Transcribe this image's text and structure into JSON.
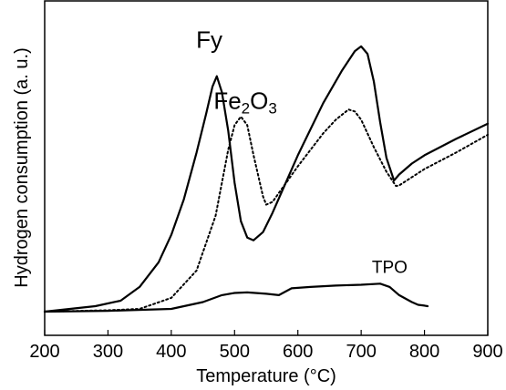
{
  "chart_data": {
    "type": "line",
    "title": "",
    "xlabel": "Temperature (°C)",
    "ylabel": "Hydrogen consumption (a. u.)",
    "xlim": [
      200,
      900
    ],
    "ylim": [
      0,
      1
    ],
    "xticks": [
      200,
      300,
      400,
      500,
      600,
      700,
      800,
      900
    ],
    "yticks_shown": false,
    "grid": false,
    "legend": "none",
    "annotations": [
      {
        "id": "fy",
        "text": "Fy",
        "x": 460,
        "y": 0.962
      },
      {
        "id": "fe2o3",
        "text": "Fe2O3",
        "text_main": "Fe",
        "sub1": "2",
        "mid": "O",
        "sub2": "3",
        "x": 517,
        "y": 0.739
      },
      {
        "id": "tpo",
        "text": "TPO",
        "x": 745,
        "y": 0.142
      }
    ],
    "series": [
      {
        "id": "fy",
        "style": "solid",
        "color": "#000000",
        "x": [
          200,
          280,
          320,
          350,
          380,
          400,
          420,
          440,
          455,
          465,
          472,
          480,
          490,
          500,
          510,
          520,
          530,
          545,
          560,
          600,
          640,
          670,
          690,
          700,
          710,
          720,
          730,
          740,
          752,
          760,
          780,
          800,
          850,
          900
        ],
        "y": [
          0.0,
          0.02,
          0.04,
          0.09,
          0.18,
          0.28,
          0.41,
          0.58,
          0.72,
          0.82,
          0.858,
          0.8,
          0.66,
          0.47,
          0.33,
          0.27,
          0.26,
          0.29,
          0.36,
          0.57,
          0.76,
          0.88,
          0.95,
          0.967,
          0.94,
          0.84,
          0.69,
          0.56,
          0.478,
          0.5,
          0.54,
          0.57,
          0.63,
          0.685
        ]
      },
      {
        "id": "fe2o3",
        "style": "dotted",
        "color": "#000000",
        "x": [
          200,
          300,
          350,
          400,
          440,
          470,
          490,
          500,
          510,
          520,
          530,
          545,
          550,
          560,
          600,
          640,
          660,
          680,
          690,
          700,
          720,
          740,
          755,
          760,
          800,
          850,
          900
        ],
        "y": [
          0.0,
          0.005,
          0.01,
          0.05,
          0.15,
          0.35,
          0.59,
          0.68,
          0.711,
          0.68,
          0.57,
          0.42,
          0.39,
          0.4,
          0.53,
          0.65,
          0.7,
          0.737,
          0.73,
          0.7,
          0.6,
          0.51,
          0.458,
          0.46,
          0.52,
          0.58,
          0.645
        ]
      },
      {
        "id": "tpo",
        "style": "solid",
        "color": "#000000",
        "x": [
          200,
          300,
          400,
          450,
          480,
          500,
          520,
          550,
          570,
          590,
          620,
          660,
          700,
          730,
          745,
          760,
          780,
          790,
          800,
          805
        ],
        "y": [
          0.0,
          0.003,
          0.01,
          0.035,
          0.06,
          0.068,
          0.07,
          0.065,
          0.06,
          0.085,
          0.09,
          0.095,
          0.098,
          0.102,
          0.09,
          0.06,
          0.035,
          0.025,
          0.022,
          0.02
        ]
      }
    ]
  }
}
